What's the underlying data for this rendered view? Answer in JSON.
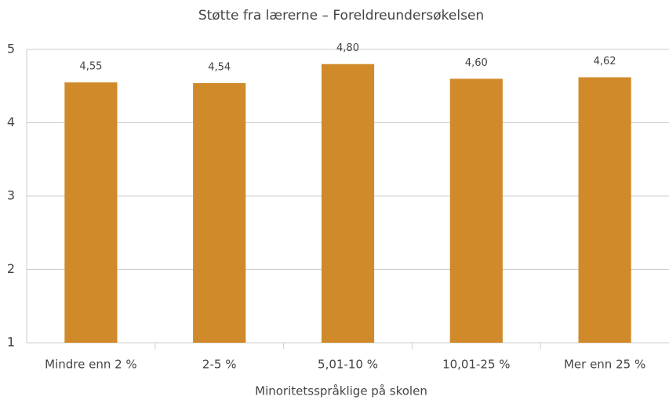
{
  "chart_data": {
    "type": "bar",
    "title": "Støtte fra lærerne – Foreldreundersøkelsen",
    "x_label": "Minoritetsspråklige på skolen",
    "categories": [
      "Mindre enn 2 %",
      "2-5 %",
      "5,01-10 %",
      "10,01-25 %",
      "Mer enn 25 %"
    ],
    "values": [
      4.55,
      4.54,
      4.8,
      4.6,
      4.62
    ],
    "value_labels": [
      "4,55",
      "4,54",
      "4,80",
      "4,60",
      "4,62"
    ],
    "color": "#d08a2a",
    "ylim": [
      1,
      5
    ],
    "yticks": [
      1,
      2,
      3,
      4,
      5
    ],
    "grid": true
  }
}
